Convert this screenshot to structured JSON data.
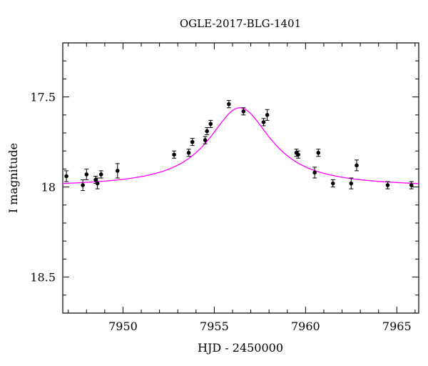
{
  "chart_data": {
    "type": "scatter",
    "title": "OGLE-2017-BLG-1401",
    "xlabel": "HJD - 2450000",
    "ylabel": "I magnitude",
    "xlim": [
      7946.7,
      7966.2
    ],
    "ylim": [
      18.7,
      17.2
    ],
    "y_inverted": true,
    "x_ticks": [
      7950,
      7955,
      7960,
      7965
    ],
    "y_ticks": [
      17.5,
      18,
      18.5
    ],
    "x_tick_labels": [
      "7950",
      "7955",
      "7960",
      "7965"
    ],
    "y_tick_labels": [
      "17.5",
      "18",
      "18.5"
    ],
    "grid": false,
    "series": [
      {
        "kind": "points-with-errorbars",
        "color": "#000000",
        "points": [
          {
            "x": 7946.9,
            "y": 17.94,
            "err": 0.03
          },
          {
            "x": 7947.8,
            "y": 17.99,
            "err": 0.03
          },
          {
            "x": 7948.0,
            "y": 17.93,
            "err": 0.03
          },
          {
            "x": 7948.5,
            "y": 17.96,
            "err": 0.02
          },
          {
            "x": 7948.6,
            "y": 17.98,
            "err": 0.03
          },
          {
            "x": 7948.8,
            "y": 17.93,
            "err": 0.02
          },
          {
            "x": 7949.7,
            "y": 17.91,
            "err": 0.04
          },
          {
            "x": 7952.8,
            "y": 17.82,
            "err": 0.02
          },
          {
            "x": 7953.6,
            "y": 17.81,
            "err": 0.02
          },
          {
            "x": 7953.8,
            "y": 17.75,
            "err": 0.02
          },
          {
            "x": 7954.5,
            "y": 17.74,
            "err": 0.02
          },
          {
            "x": 7954.6,
            "y": 17.69,
            "err": 0.02
          },
          {
            "x": 7954.8,
            "y": 17.65,
            "err": 0.02
          },
          {
            "x": 7955.8,
            "y": 17.54,
            "err": 0.02
          },
          {
            "x": 7956.6,
            "y": 17.58,
            "err": 0.02
          },
          {
            "x": 7957.7,
            "y": 17.64,
            "err": 0.02
          },
          {
            "x": 7957.9,
            "y": 17.6,
            "err": 0.03
          },
          {
            "x": 7959.5,
            "y": 17.81,
            "err": 0.02
          },
          {
            "x": 7959.6,
            "y": 17.82,
            "err": 0.02
          },
          {
            "x": 7960.5,
            "y": 17.92,
            "err": 0.03
          },
          {
            "x": 7960.7,
            "y": 17.81,
            "err": 0.02
          },
          {
            "x": 7961.5,
            "y": 17.98,
            "err": 0.02
          },
          {
            "x": 7962.5,
            "y": 17.98,
            "err": 0.03
          },
          {
            "x": 7962.8,
            "y": 17.88,
            "err": 0.03
          },
          {
            "x": 7964.5,
            "y": 17.99,
            "err": 0.02
          },
          {
            "x": 7965.8,
            "y": 17.99,
            "err": 0.02
          }
        ]
      },
      {
        "kind": "model-curve",
        "color": "#ff00ff",
        "baseline": 18.0,
        "peak_mag": 17.56,
        "t0": 7956.4,
        "width": 2.1
      }
    ]
  }
}
